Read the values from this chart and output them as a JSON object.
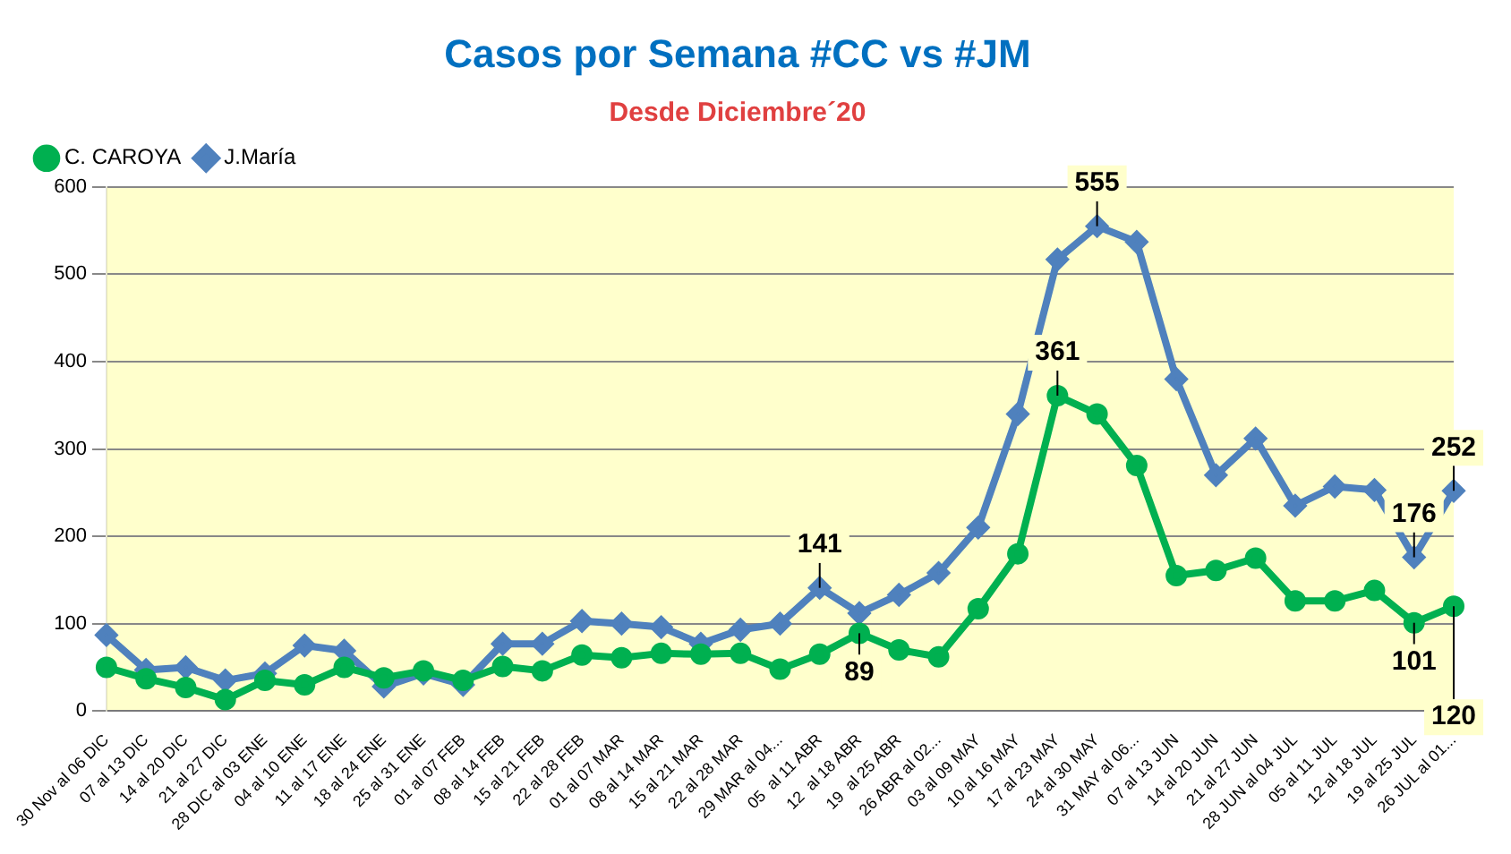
{
  "chart_data": {
    "type": "line",
    "title": "Casos por Semana #CC vs #JM",
    "subtitle": "Desde Diciembre´20",
    "categories": [
      "30 Nov al 06 DIC",
      "07 al 13 DIC",
      "14 al 20 DIC",
      "21 al 27 DIC",
      "28 DIC al 03 ENE",
      "04 al 10 ENE",
      "11 al 17 ENE",
      "18 al 24 ENE",
      "25 al 31 ENE",
      "01 al 07 FEB",
      "08 al 14 FEB",
      "15 al 21 FEB",
      "22 al 28 FEB",
      "01 al 07 MAR",
      "08 al 14 MAR",
      "15 al 21 MAR",
      "22 al 28 MAR",
      "29 MAR al 04...",
      "05  al 11 ABR",
      "12  al 18 ABR",
      "19  al 25 ABR",
      "26 ABR al 02...",
      "03 al 09 MAY",
      "10 al 16 MAY",
      "17 al 23 MAY",
      "24 al 30 MAY",
      "31 MAY al 06...",
      "07 al 13 JUN",
      "14 al 20 JUN",
      "21 al 27 JUN",
      "28 JUN al 04 JUL",
      "05 al 11 JUL",
      "12 al 18 JUL",
      "19 al 25 JUL",
      "26 JUL al 01..."
    ],
    "series": [
      {
        "name": "C. CAROYA",
        "color": "#00b050",
        "marker": "circle",
        "values": [
          50,
          37,
          27,
          13,
          35,
          30,
          50,
          38,
          46,
          35,
          51,
          46,
          64,
          61,
          66,
          65,
          66,
          48,
          65,
          89,
          70,
          62,
          117,
          180,
          361,
          340,
          281,
          155,
          161,
          175,
          126,
          126,
          138,
          101,
          120
        ]
      },
      {
        "name": "J.María",
        "color": "#4f81bd",
        "marker": "diamond",
        "values": [
          87,
          47,
          50,
          35,
          43,
          75,
          69,
          28,
          43,
          30,
          77,
          77,
          103,
          100,
          96,
          77,
          93,
          100,
          141,
          112,
          133,
          158,
          210,
          340,
          517,
          555,
          537,
          380,
          270,
          312,
          235,
          257,
          253,
          176,
          252
        ]
      }
    ],
    "ylim": [
      0,
      600
    ],
    "yticks": [
      0,
      100,
      200,
      300,
      400,
      500,
      600
    ],
    "grid": "y",
    "legend": "top left",
    "line_style": "solid",
    "annotations": [
      {
        "text": "141",
        "x": "05  al 11 ABR",
        "y": 141
      },
      {
        "text": "89",
        "x": "12  al 18 ABR",
        "y": 89
      },
      {
        "text": "555",
        "x": "24 al 30 MAY",
        "y": 555
      },
      {
        "text": "361",
        "x": "17 al 23 MAY",
        "y": 361
      },
      {
        "text": "176",
        "x": "19 al 25 JUL",
        "y": 176
      },
      {
        "text": "252",
        "x": "26 JUL al 01...",
        "y": 252
      },
      {
        "text": "101",
        "x": "19 al 25 JUL",
        "y": 101
      },
      {
        "text": "120",
        "x": "26 JUL al 01...",
        "y": 120
      }
    ]
  }
}
